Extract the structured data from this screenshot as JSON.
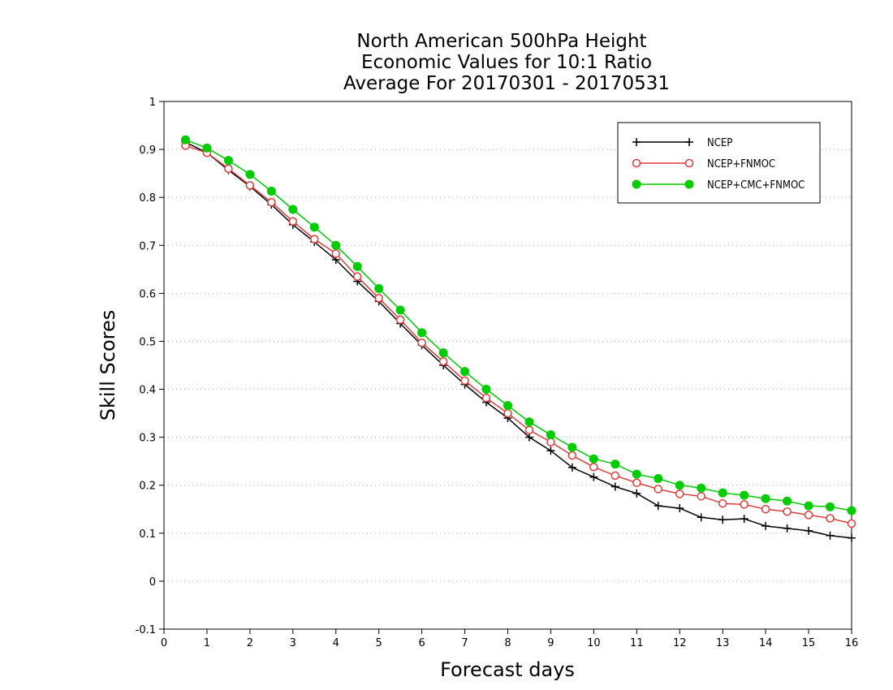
{
  "chart_data": {
    "type": "line",
    "title": [
      "North American 500hPa Height",
      "Economic Values for 10:1 Ratio",
      "Average For 20170301 - 20170531"
    ],
    "xlabel": "Forecast days",
    "ylabel": "Skill Scores",
    "xlim": [
      0,
      16
    ],
    "ylim": [
      -0.1,
      1
    ],
    "xticks": [
      "0",
      "1",
      "2",
      "3",
      "4",
      "5",
      "6",
      "7",
      "8",
      "9",
      "10",
      "11",
      "12",
      "13",
      "14",
      "15",
      "16"
    ],
    "yticks": [
      "-0.1",
      "0",
      "0.1",
      "0.2",
      "0.3",
      "0.4",
      "0.5",
      "0.6",
      "0.7",
      "0.8",
      "0.9",
      "1"
    ],
    "grid": true,
    "legend_position": "top-right",
    "x": [
      0.5,
      1,
      1.5,
      2,
      2.5,
      3,
      3.5,
      4,
      4.5,
      5,
      5.5,
      6,
      6.5,
      7,
      7.5,
      8,
      8.5,
      9,
      9.5,
      10,
      10.5,
      11,
      11.5,
      12,
      12.5,
      13,
      13.5,
      14,
      14.5,
      15,
      15.5,
      16
    ],
    "series": [
      {
        "name": "NCEP",
        "color": "#000000",
        "marker": "plus",
        "values": [
          0.915,
          0.893,
          0.857,
          0.823,
          0.785,
          0.743,
          0.707,
          0.67,
          0.625,
          0.583,
          0.537,
          0.492,
          0.45,
          0.41,
          0.373,
          0.34,
          0.3,
          0.272,
          0.237,
          0.217,
          0.197,
          0.183,
          0.157,
          0.152,
          0.133,
          0.128,
          0.13,
          0.115,
          0.11,
          0.105,
          0.095,
          0.09
        ]
      },
      {
        "name": "NCEP+FNMOC",
        "color": "#e03c3c",
        "marker": "circle-open",
        "values": [
          0.908,
          0.893,
          0.86,
          0.825,
          0.79,
          0.75,
          0.713,
          0.683,
          0.635,
          0.59,
          0.545,
          0.497,
          0.458,
          0.418,
          0.382,
          0.35,
          0.315,
          0.29,
          0.262,
          0.238,
          0.22,
          0.205,
          0.192,
          0.182,
          0.177,
          0.162,
          0.16,
          0.15,
          0.145,
          0.138,
          0.131,
          0.12
        ]
      },
      {
        "name": "NCEP+CMC+FNMOC",
        "color": "#00cc00",
        "marker": "circle-filled",
        "values": [
          0.92,
          0.903,
          0.877,
          0.848,
          0.813,
          0.775,
          0.738,
          0.7,
          0.656,
          0.61,
          0.565,
          0.518,
          0.476,
          0.437,
          0.4,
          0.366,
          0.332,
          0.305,
          0.279,
          0.255,
          0.244,
          0.223,
          0.214,
          0.2,
          0.194,
          0.184,
          0.179,
          0.172,
          0.167,
          0.157,
          0.155,
          0.147
        ]
      }
    ]
  }
}
